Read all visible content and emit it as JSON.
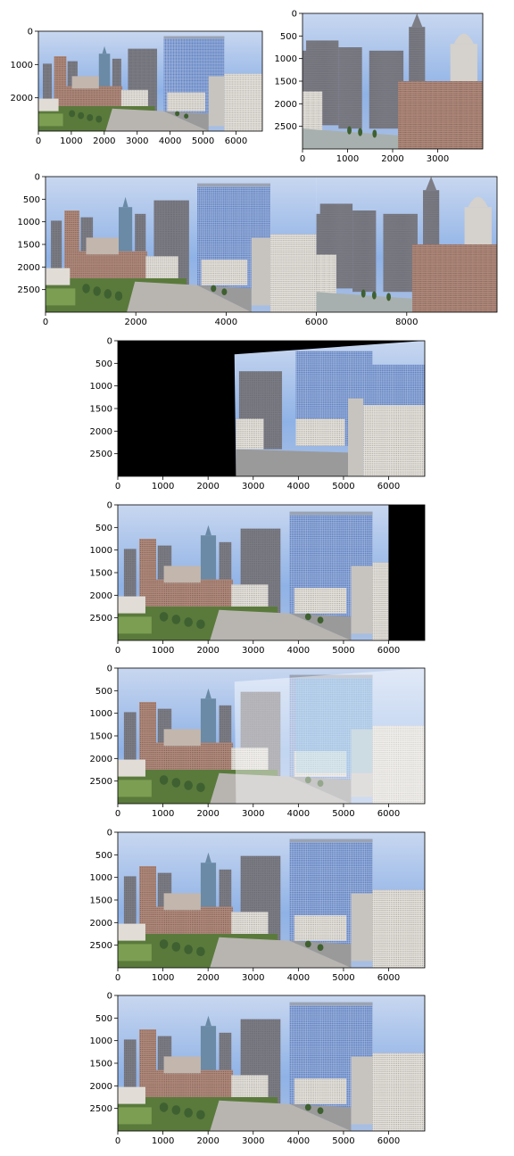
{
  "figure": {
    "palette": {
      "sky": "#8fb2e6",
      "sky_top": "#c8d7f0",
      "glass": "#5f82c4",
      "tower": "#7d7d86",
      "brick": "#b38b7c",
      "white_bldg": "#e6e2dc",
      "green": "#5a7a3c",
      "road": "#9a9a9a",
      "black": "#000000"
    }
  },
  "chart_data": [
    {
      "type": "image",
      "panel": "source-left",
      "x_ticks": [
        0,
        1000,
        2000,
        3000,
        4000,
        5000,
        6000
      ],
      "y_ticks": [
        0,
        1000,
        2000
      ],
      "xlim": [
        0,
        6800
      ],
      "ylim": [
        3000,
        0
      ],
      "content": "photo-left"
    },
    {
      "type": "image",
      "panel": "source-right",
      "x_ticks": [
        0,
        1000,
        2000,
        3000
      ],
      "y_ticks": [
        0,
        500,
        1000,
        1500,
        2000,
        2500
      ],
      "xlim": [
        0,
        4000
      ],
      "ylim": [
        3000,
        0
      ],
      "content": "photo-right"
    },
    {
      "type": "image",
      "panel": "naive-stitch",
      "x_ticks": [
        0,
        2000,
        4000,
        6000,
        8000
      ],
      "y_ticks": [
        0,
        500,
        1000,
        1500,
        2000,
        2500
      ],
      "xlim": [
        0,
        10000
      ],
      "ylim": [
        3000,
        0
      ],
      "content": "photo-wide"
    },
    {
      "type": "image",
      "panel": "warped-right",
      "x_ticks": [
        0,
        1000,
        2000,
        3000,
        4000,
        5000,
        6000
      ],
      "y_ticks": [
        0,
        500,
        1000,
        1500,
        2000,
        2500
      ],
      "xlim": [
        0,
        6800
      ],
      "ylim": [
        3000,
        0
      ],
      "content": "photo-warped"
    },
    {
      "type": "image",
      "panel": "left-padded",
      "x_ticks": [
        0,
        1000,
        2000,
        3000,
        4000,
        5000,
        6000
      ],
      "y_ticks": [
        0,
        500,
        1000,
        1500,
        2000,
        2500
      ],
      "xlim": [
        0,
        6800
      ],
      "ylim": [
        3000,
        0
      ],
      "content": "photo-padded"
    },
    {
      "type": "image",
      "panel": "overlay-blend",
      "x_ticks": [
        0,
        1000,
        2000,
        3000,
        4000,
        5000,
        6000
      ],
      "y_ticks": [
        0,
        500,
        1000,
        1500,
        2000,
        2500
      ],
      "xlim": [
        0,
        6800
      ],
      "ylim": [
        3000,
        0
      ],
      "content": "photo-overlay"
    },
    {
      "type": "image",
      "panel": "blended-result",
      "x_ticks": [
        0,
        1000,
        2000,
        3000,
        4000,
        5000,
        6000
      ],
      "y_ticks": [
        0,
        500,
        1000,
        1500,
        2000,
        2500
      ],
      "xlim": [
        0,
        6800
      ],
      "ylim": [
        3000,
        0
      ],
      "content": "photo-full"
    },
    {
      "type": "image",
      "panel": "final-result",
      "x_ticks": [
        0,
        1000,
        2000,
        3000,
        4000,
        5000,
        6000
      ],
      "y_ticks": [
        0,
        500,
        1000,
        1500,
        2000,
        2500
      ],
      "xlim": [
        0,
        6800
      ],
      "ylim": [
        3000,
        0
      ],
      "content": "photo-full"
    }
  ]
}
